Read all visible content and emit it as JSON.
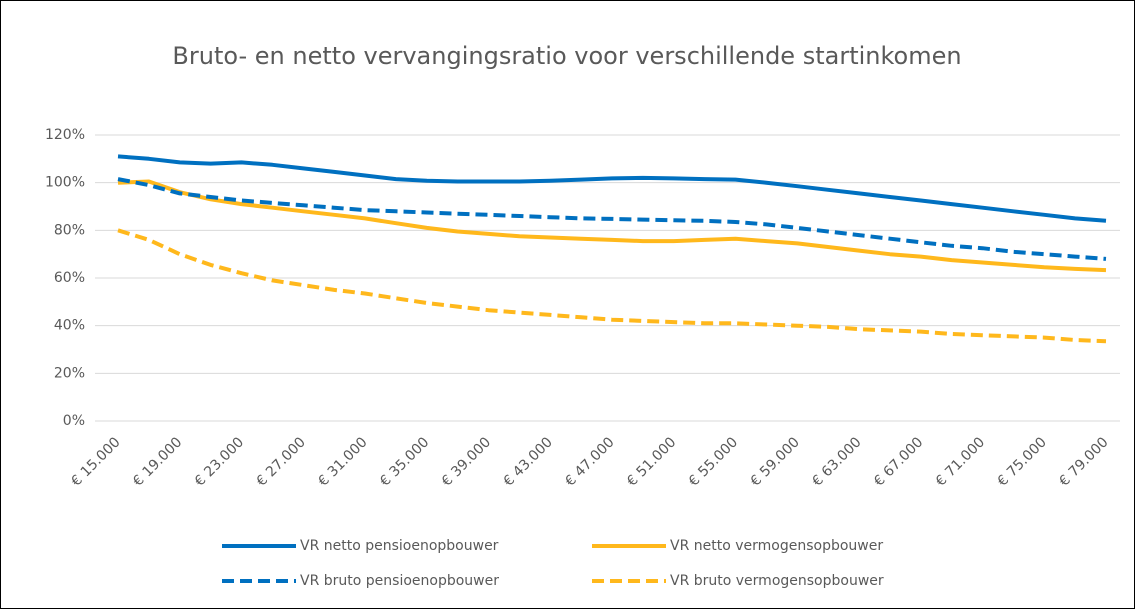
{
  "chart_data": {
    "type": "line",
    "title": "Bruto- en netto vervangingsratio voor verschillende startinkomen",
    "categories": [
      "€ 15.000",
      null,
      "€ 19.000",
      null,
      "€ 23.000",
      null,
      "€ 27.000",
      null,
      "€ 31.000",
      null,
      "€ 35.000",
      null,
      "€ 39.000",
      null,
      "€ 43.000",
      null,
      "€ 47.000",
      null,
      "€ 51.000",
      null,
      "€ 55.000",
      null,
      "€ 59.000",
      null,
      "€ 63.000",
      null,
      "€ 67.000",
      null,
      "€ 71.000",
      null,
      "€ 75.000",
      null,
      "€ 79.000"
    ],
    "series": [
      {
        "name": "VR netto pensioenopbouwer",
        "color": "#0070c0",
        "dashed": false,
        "values": [
          111,
          110,
          108.5,
          108,
          108.5,
          107.5,
          106,
          104.5,
          103,
          101.5,
          100.8,
          100.5,
          100.5,
          100.5,
          100.8,
          101.3,
          101.8,
          102,
          101.8,
          101.5,
          101.3,
          100,
          98.5,
          97,
          95.5,
          94,
          92.5,
          91,
          89.5,
          88,
          86.5,
          85,
          84
        ]
      },
      {
        "name": "VR netto vermogensopbouwer",
        "color": "#ffb81c",
        "dashed": false,
        "values": [
          100,
          100.5,
          96,
          93,
          91,
          89.5,
          88,
          86.5,
          85,
          83,
          81,
          79.5,
          78.5,
          77.5,
          77,
          76.5,
          76,
          75.5,
          75.5,
          76,
          76.5,
          75.5,
          74.5,
          73,
          71.5,
          70,
          69,
          67.5,
          66.5,
          65.5,
          64.5,
          63.8,
          63.3
        ]
      },
      {
        "name": "VR bruto pensioenopbouwer",
        "color": "#0070c0",
        "dashed": true,
        "values": [
          101.5,
          99,
          95.5,
          94,
          92.5,
          91.5,
          90.5,
          89.5,
          88.5,
          88,
          87.5,
          87,
          86.5,
          86,
          85.5,
          85,
          84.8,
          84.5,
          84.2,
          84,
          83.5,
          82.5,
          81,
          79.5,
          78,
          76.5,
          75,
          73.5,
          72.5,
          71,
          70,
          69,
          68
        ]
      },
      {
        "name": "VR bruto vermogensopbouwer",
        "color": "#ffb81c",
        "dashed": true,
        "values": [
          80,
          76,
          70,
          65.5,
          62,
          59,
          57,
          55,
          53.5,
          51.5,
          49.5,
          48,
          46.5,
          45.5,
          44.5,
          43.5,
          42.5,
          42,
          41.5,
          41,
          41,
          40.5,
          40,
          39.5,
          38.5,
          38,
          37.5,
          36.5,
          36,
          35.5,
          35,
          34,
          33.5
        ]
      }
    ],
    "ylim": [
      0,
      120
    ],
    "yticks": [
      {
        "value": 0,
        "label": "0%"
      },
      {
        "value": 20,
        "label": "20%"
      },
      {
        "value": 40,
        "label": "40%"
      },
      {
        "value": 60,
        "label": "60%"
      },
      {
        "value": 80,
        "label": "80%"
      },
      {
        "value": 100,
        "label": "100%"
      },
      {
        "value": 120,
        "label": "120%"
      }
    ],
    "grid": true,
    "legend": "bottom"
  }
}
